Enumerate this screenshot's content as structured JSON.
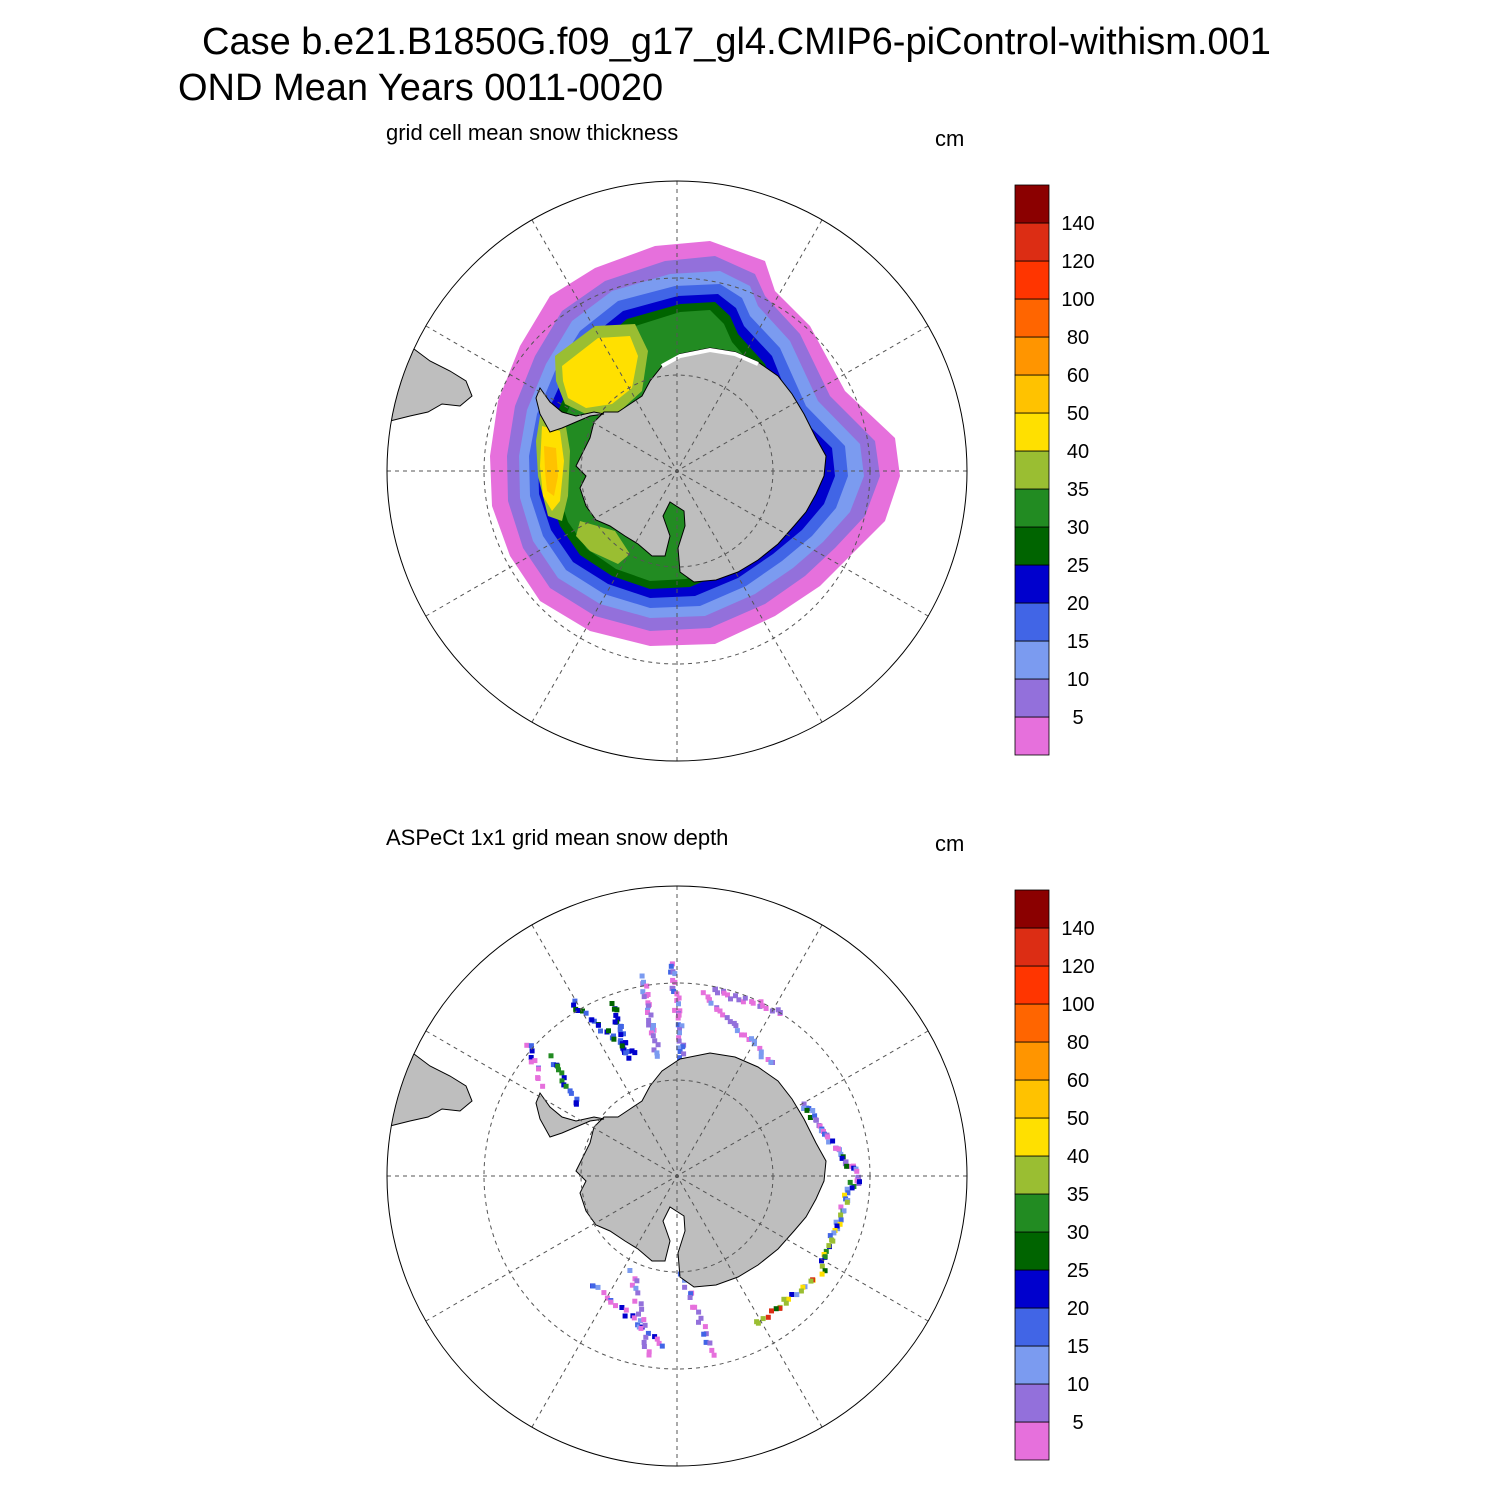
{
  "header": {
    "title_line1": "Case b.e21.B1850G.f09_g17_gl4.CMIP6-piControl-withism.001",
    "title_line2": "OND Mean   Years 0011-0020"
  },
  "colorbar": {
    "levels": [
      "5",
      "10",
      "15",
      "20",
      "25",
      "30",
      "35",
      "40",
      "50",
      "60",
      "80",
      "100",
      "120",
      "140"
    ],
    "colors": [
      "#e670dc",
      "#9370db",
      "#7b9bf0",
      "#4165e6",
      "#0000cd",
      "#006400",
      "#228b22",
      "#9abe32",
      "#ffe000",
      "#ffc200",
      "#ff9500",
      "#ff6500",
      "#ff3500",
      "#dc2d14",
      "#8b0000"
    ]
  },
  "panels": [
    {
      "title": "grid cell mean snow thickness",
      "units": "cm"
    },
    {
      "title": "ASPeCt 1x1 grid mean snow depth",
      "units": "cm"
    }
  ],
  "colors": {
    "land": "#bebebe",
    "coast": "#000000",
    "ice_edge": "#ffffff"
  }
}
